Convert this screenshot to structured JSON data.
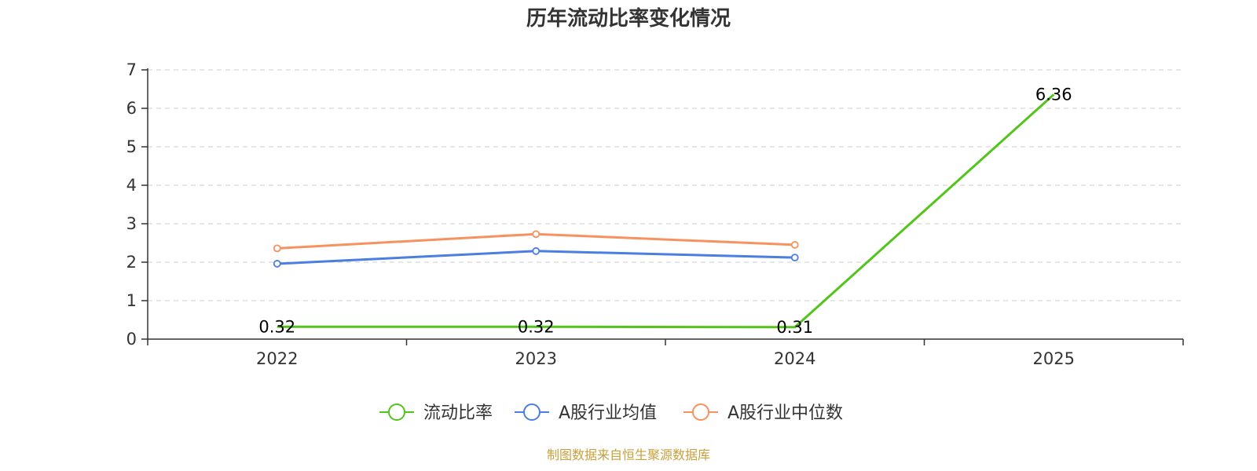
{
  "chart_data": {
    "type": "line",
    "title": "历年流动比率变化情况",
    "categories": [
      "2022",
      "2023",
      "2024",
      "2025"
    ],
    "ylim": [
      0,
      7
    ],
    "yticks": [
      0,
      1,
      2,
      3,
      4,
      5,
      6,
      7
    ],
    "grid": true,
    "legend_position": "bottom-center",
    "series": [
      {
        "name": "流动比率",
        "color": "#52c41a",
        "values": [
          0.32,
          0.32,
          0.31,
          6.36
        ],
        "labels": [
          "0.32",
          "0.32",
          "0.31",
          "6.36"
        ],
        "show_markers": false
      },
      {
        "name": "A股行业均值",
        "color": "#4a7ee0",
        "values": [
          1.96,
          2.29,
          2.12,
          null
        ],
        "show_markers": true
      },
      {
        "name": "A股行业中位数",
        "color": "#f79260",
        "values": [
          2.36,
          2.73,
          2.45,
          null
        ],
        "show_markers": true
      }
    ]
  },
  "footer": {
    "source": "制图数据来自恒生聚源数据库"
  }
}
